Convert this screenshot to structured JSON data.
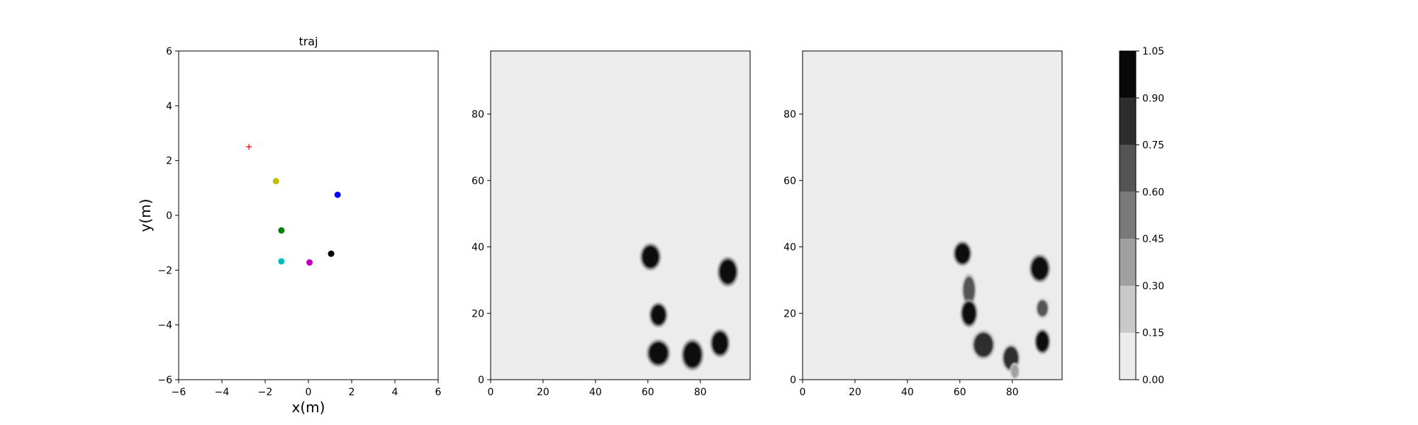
{
  "chart_data": [
    {
      "type": "scatter",
      "title": "traj",
      "xlabel": "x(m)",
      "ylabel": "y(m)",
      "xlim": [
        -6,
        6
      ],
      "ylim": [
        -6,
        6
      ],
      "xticks": [
        "−6",
        "−4",
        "−2",
        "0",
        "2",
        "4",
        "6"
      ],
      "yticks": [
        "−6",
        "−4",
        "−2",
        "0",
        "2",
        "4",
        "6"
      ],
      "grid": false,
      "points": [
        {
          "x": -2.75,
          "y": 2.5,
          "marker": "plus",
          "color": "#ff0000"
        },
        {
          "x": -1.5,
          "y": 1.25,
          "marker": "circle",
          "color": "#bfbf00"
        },
        {
          "x": 1.35,
          "y": 0.75,
          "marker": "circle",
          "color": "#0000ff"
        },
        {
          "x": -1.25,
          "y": -0.55,
          "marker": "circle",
          "color": "#008000"
        },
        {
          "x": 1.05,
          "y": -1.4,
          "marker": "circle",
          "color": "#000000"
        },
        {
          "x": -1.25,
          "y": -1.68,
          "marker": "circle",
          "color": "#00bfbf"
        },
        {
          "x": 0.05,
          "y": -1.72,
          "marker": "circle",
          "color": "#bf00bf"
        }
      ]
    },
    {
      "type": "heatmap",
      "xlim": [
        0,
        99
      ],
      "ylim": [
        0,
        99
      ],
      "xticks": [
        "0",
        "20",
        "40",
        "60",
        "80"
      ],
      "yticks": [
        "0",
        "20",
        "40",
        "60",
        "80"
      ],
      "background_level": 0.0,
      "blobs": [
        {
          "x": 61,
          "y": 37,
          "rx": 3.2,
          "ry": 3.3,
          "value": 1.0
        },
        {
          "x": 90.5,
          "y": 32.5,
          "rx": 3.2,
          "ry": 3.6,
          "value": 1.0
        },
        {
          "x": 64,
          "y": 19.5,
          "rx": 2.8,
          "ry": 3.0,
          "value": 1.0
        },
        {
          "x": 64,
          "y": 8,
          "rx": 3.6,
          "ry": 3.3,
          "value": 1.0
        },
        {
          "x": 77,
          "y": 7.5,
          "rx": 3.4,
          "ry": 3.8,
          "value": 1.0
        },
        {
          "x": 87.5,
          "y": 11,
          "rx": 3.0,
          "ry": 3.4,
          "value": 1.0
        }
      ]
    },
    {
      "type": "heatmap",
      "xlim": [
        0,
        99
      ],
      "ylim": [
        0,
        99
      ],
      "xticks": [
        "0",
        "20",
        "40",
        "60",
        "80"
      ],
      "yticks": [
        "0",
        "20",
        "40",
        "60",
        "80"
      ],
      "background_level": 0.0,
      "blobs": [
        {
          "x": 61,
          "y": 38,
          "rx": 2.8,
          "ry": 3.0,
          "value": 1.0
        },
        {
          "x": 63.5,
          "y": 27,
          "rx": 2.2,
          "ry": 4.0,
          "value": 0.6
        },
        {
          "x": 63.5,
          "y": 20,
          "rx": 2.6,
          "ry": 3.4,
          "value": 1.0
        },
        {
          "x": 69,
          "y": 10.5,
          "rx": 3.6,
          "ry": 3.6,
          "value": 0.75
        },
        {
          "x": 79.5,
          "y": 6.5,
          "rx": 2.8,
          "ry": 3.4,
          "value": 0.75
        },
        {
          "x": 81,
          "y": 2.5,
          "rx": 1.5,
          "ry": 2.0,
          "value": 0.4
        },
        {
          "x": 90.5,
          "y": 33.5,
          "rx": 3.2,
          "ry": 3.4,
          "value": 1.0
        },
        {
          "x": 91.5,
          "y": 21.5,
          "rx": 2.0,
          "ry": 2.4,
          "value": 0.6
        },
        {
          "x": 91.5,
          "y": 11.5,
          "rx": 2.4,
          "ry": 3.0,
          "value": 1.0
        }
      ]
    },
    {
      "type": "colorbar",
      "levels": [
        "0.00",
        "0.15",
        "0.30",
        "0.45",
        "0.60",
        "0.75",
        "0.90",
        "1.05"
      ],
      "colors": [
        "#ececec",
        "#c9c9c9",
        "#a0a0a0",
        "#7a7a7a",
        "#555555",
        "#2d2d2d",
        "#080808"
      ]
    }
  ]
}
